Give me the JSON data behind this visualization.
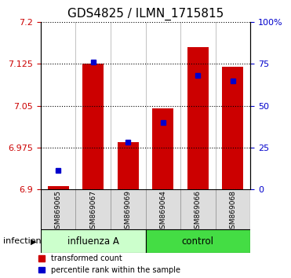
{
  "title": "GDS4825 / ILMN_1715815",
  "samples": [
    "GSM869065",
    "GSM869067",
    "GSM869069",
    "GSM869064",
    "GSM869066",
    "GSM869068"
  ],
  "transformed_count": [
    6.905,
    7.125,
    6.985,
    7.045,
    7.155,
    7.12
  ],
  "percentile_rank": [
    11,
    76,
    28,
    40,
    68,
    65
  ],
  "ylim": [
    6.9,
    7.2
  ],
  "y_ticks": [
    6.9,
    6.975,
    7.05,
    7.125,
    7.2
  ],
  "y_tick_labels": [
    "6.9",
    "6.975",
    "7.05",
    "7.125",
    "7.2"
  ],
  "right_ticks": [
    0,
    25,
    50,
    75,
    100
  ],
  "right_tick_labels": [
    "0",
    "25",
    "50",
    "75",
    "100%"
  ],
  "bar_color": "#cc0000",
  "dot_color": "#0000cc",
  "base_value": 6.9,
  "light_green": "#ccffcc",
  "dark_green": "#44dd44",
  "gray_sample": "#dddddd",
  "legend_bar_label": "transformed count",
  "legend_dot_label": "percentile rank within the sample",
  "title_fontsize": 11,
  "tick_fontsize": 8,
  "label_fontsize": 8,
  "infection_label": "infection"
}
